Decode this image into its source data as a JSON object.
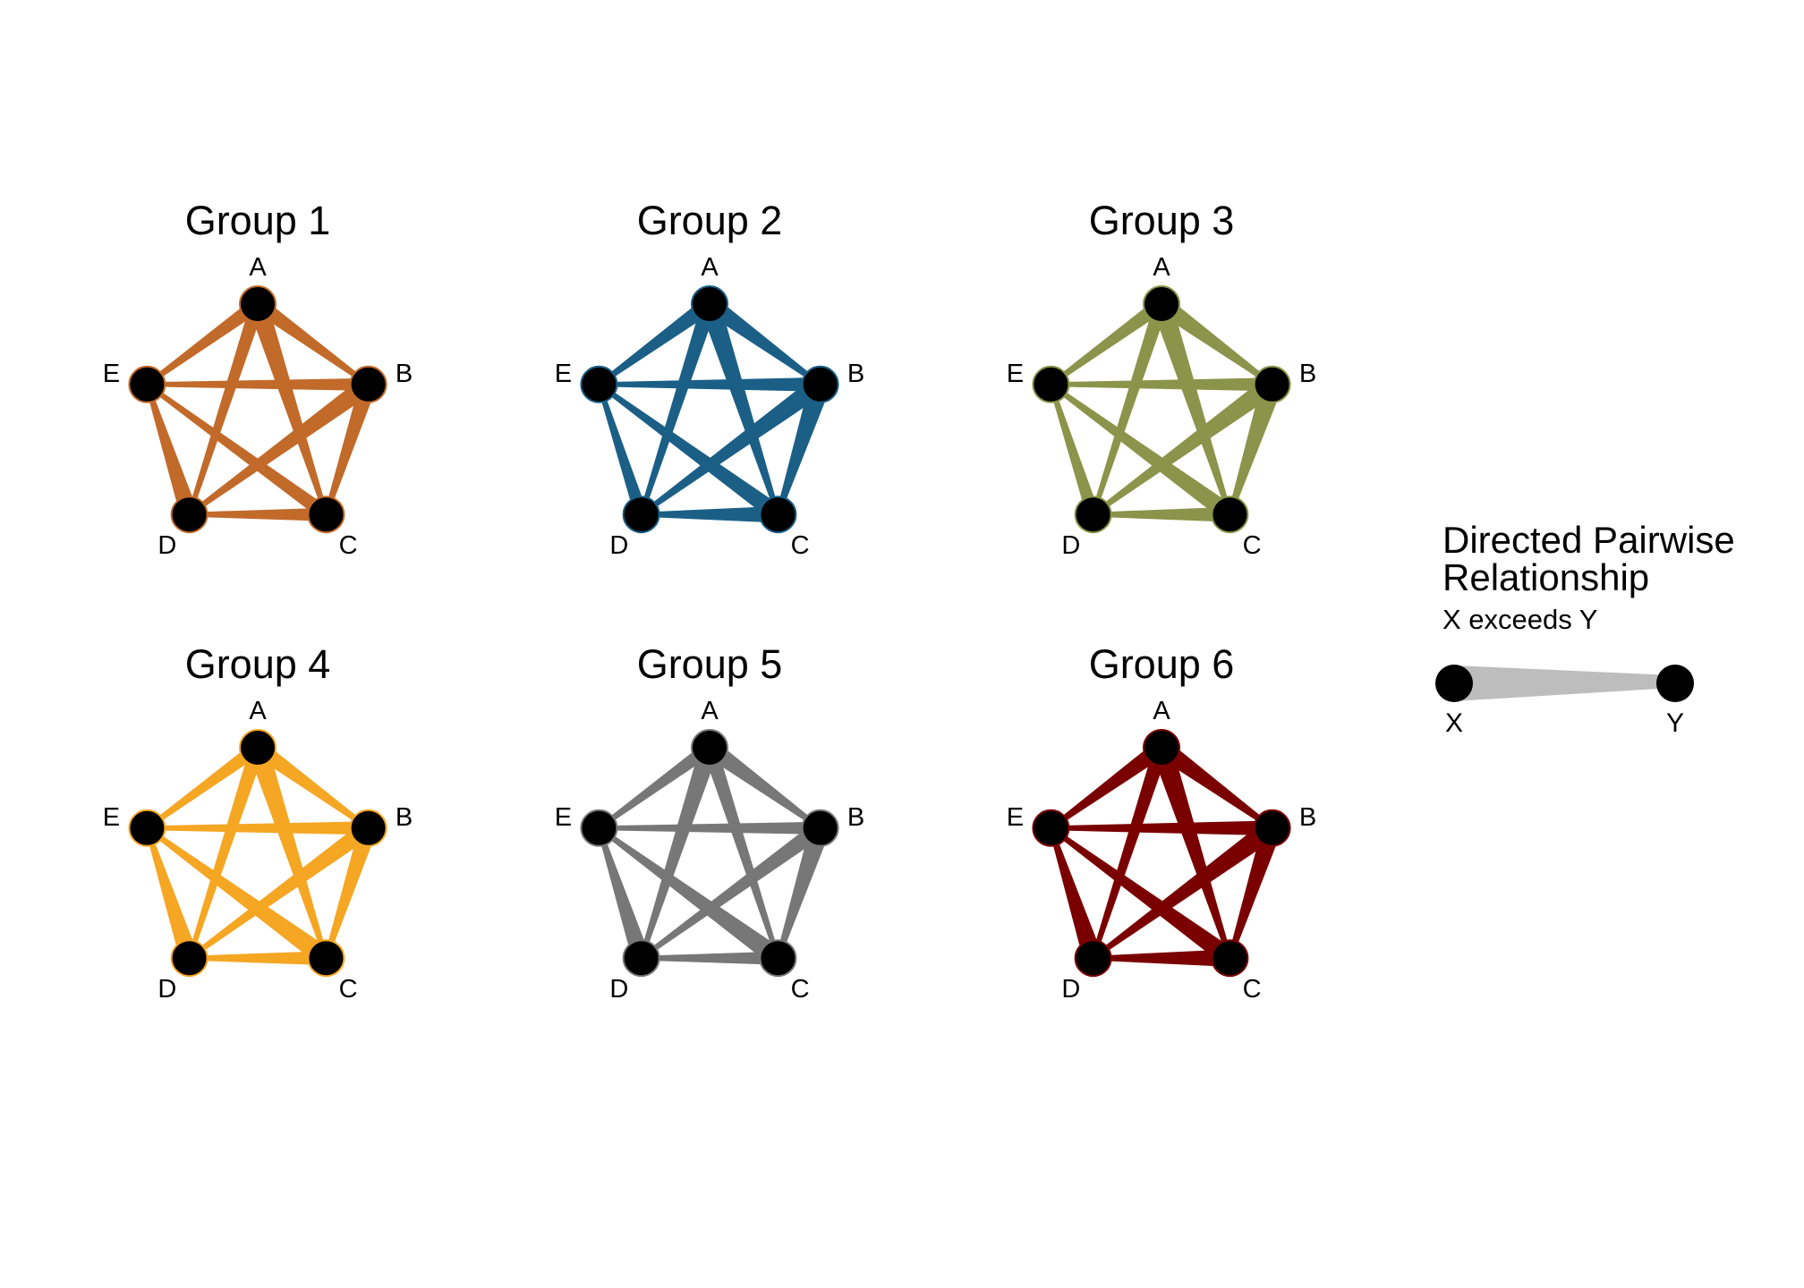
{
  "node_names": [
    "A",
    "B",
    "C",
    "D",
    "E"
  ],
  "groups": [
    {
      "title": "Group 1",
      "color": "#c16a2a",
      "edges": [
        {
          "from": "A",
          "to": "B",
          "strength": 0.65
        },
        {
          "from": "A",
          "to": "C",
          "strength": 0.9
        },
        {
          "from": "A",
          "to": "D",
          "strength": 0.55
        },
        {
          "from": "A",
          "to": "E",
          "strength": 0.6
        },
        {
          "from": "B",
          "to": "C",
          "strength": 0.75
        },
        {
          "from": "B",
          "to": "D",
          "strength": 0.85
        },
        {
          "from": "B",
          "to": "E",
          "strength": 0.45
        },
        {
          "from": "C",
          "to": "D",
          "strength": 0.5
        },
        {
          "from": "C",
          "to": "E",
          "strength": 0.55
        },
        {
          "from": "D",
          "to": "E",
          "strength": 0.8
        }
      ]
    },
    {
      "title": "Group 2",
      "color": "#1b5f86",
      "edges": [
        {
          "from": "A",
          "to": "B",
          "strength": 0.8
        },
        {
          "from": "A",
          "to": "C",
          "strength": 0.95
        },
        {
          "from": "A",
          "to": "D",
          "strength": 0.65
        },
        {
          "from": "A",
          "to": "E",
          "strength": 0.7
        },
        {
          "from": "B",
          "to": "C",
          "strength": 1.0
        },
        {
          "from": "B",
          "to": "D",
          "strength": 0.9
        },
        {
          "from": "B",
          "to": "E",
          "strength": 0.55
        },
        {
          "from": "C",
          "to": "D",
          "strength": 0.7
        },
        {
          "from": "C",
          "to": "E",
          "strength": 0.75
        },
        {
          "from": "D",
          "to": "E",
          "strength": 0.5
        }
      ]
    },
    {
      "title": "Group 3",
      "color": "#8a944a",
      "edges": [
        {
          "from": "A",
          "to": "B",
          "strength": 0.8
        },
        {
          "from": "A",
          "to": "C",
          "strength": 0.95
        },
        {
          "from": "A",
          "to": "D",
          "strength": 0.55
        },
        {
          "from": "A",
          "to": "E",
          "strength": 0.6
        },
        {
          "from": "B",
          "to": "C",
          "strength": 1.0
        },
        {
          "from": "B",
          "to": "D",
          "strength": 0.9
        },
        {
          "from": "B",
          "to": "E",
          "strength": 0.5
        },
        {
          "from": "C",
          "to": "D",
          "strength": 0.6
        },
        {
          "from": "C",
          "to": "E",
          "strength": 0.8
        },
        {
          "from": "D",
          "to": "E",
          "strength": 0.5
        }
      ]
    },
    {
      "title": "Group 4",
      "color": "#f5a623",
      "edges": [
        {
          "from": "A",
          "to": "B",
          "strength": 0.7
        },
        {
          "from": "A",
          "to": "C",
          "strength": 0.95
        },
        {
          "from": "A",
          "to": "D",
          "strength": 0.6
        },
        {
          "from": "A",
          "to": "E",
          "strength": 0.55
        },
        {
          "from": "B",
          "to": "C",
          "strength": 0.8
        },
        {
          "from": "B",
          "to": "D",
          "strength": 0.75
        },
        {
          "from": "B",
          "to": "E",
          "strength": 0.5
        },
        {
          "from": "C",
          "to": "D",
          "strength": 0.55
        },
        {
          "from": "C",
          "to": "E",
          "strength": 0.9
        },
        {
          "from": "D",
          "to": "E",
          "strength": 0.85
        }
      ]
    },
    {
      "title": "Group 5",
      "color": "#777777",
      "edges": [
        {
          "from": "A",
          "to": "B",
          "strength": 0.8
        },
        {
          "from": "A",
          "to": "C",
          "strength": 0.6
        },
        {
          "from": "A",
          "to": "D",
          "strength": 0.85
        },
        {
          "from": "A",
          "to": "E",
          "strength": 0.55
        },
        {
          "from": "B",
          "to": "C",
          "strength": 0.95
        },
        {
          "from": "B",
          "to": "D",
          "strength": 0.7
        },
        {
          "from": "B",
          "to": "E",
          "strength": 0.45
        },
        {
          "from": "C",
          "to": "D",
          "strength": 0.5
        },
        {
          "from": "C",
          "to": "E",
          "strength": 0.9
        },
        {
          "from": "D",
          "to": "E",
          "strength": 0.8
        }
      ]
    },
    {
      "title": "Group 6",
      "color": "#7a0000",
      "edges": [
        {
          "from": "A",
          "to": "B",
          "strength": 0.85
        },
        {
          "from": "A",
          "to": "C",
          "strength": 1.0
        },
        {
          "from": "A",
          "to": "D",
          "strength": 0.6
        },
        {
          "from": "A",
          "to": "E",
          "strength": 0.75
        },
        {
          "from": "B",
          "to": "C",
          "strength": 0.9
        },
        {
          "from": "B",
          "to": "D",
          "strength": 0.95
        },
        {
          "from": "B",
          "to": "E",
          "strength": 0.6
        },
        {
          "from": "C",
          "to": "D",
          "strength": 0.75
        },
        {
          "from": "C",
          "to": "E",
          "strength": 0.85
        },
        {
          "from": "D",
          "to": "E",
          "strength": 0.9
        }
      ]
    }
  ],
  "legend": {
    "title_line1": "Directed Pairwise",
    "title_line2": "Relationship",
    "subtitle": "X exceeds Y",
    "from_label": "X",
    "to_label": "Y",
    "edge_color": "#bdbdbd"
  },
  "node_fill": "#000000"
}
